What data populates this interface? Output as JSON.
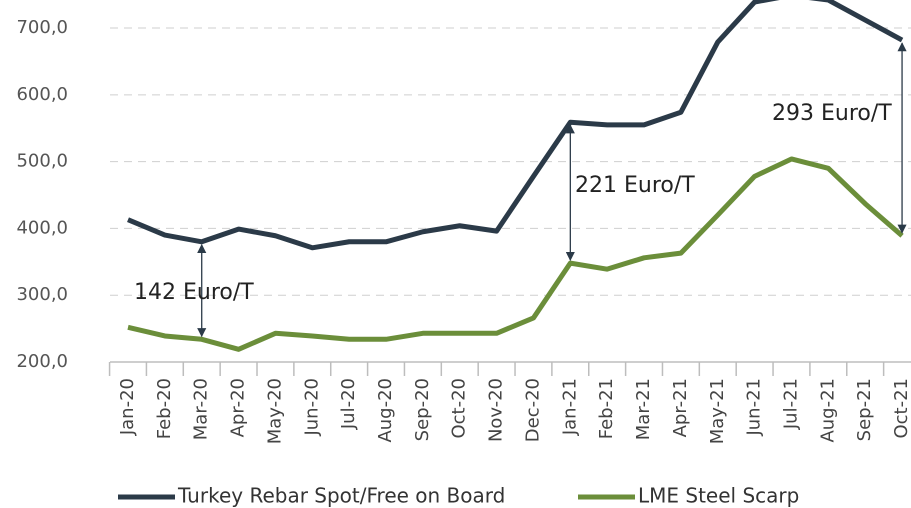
{
  "chart_data": {
    "type": "line",
    "categories": [
      "Jan-20",
      "Feb-20",
      "Mar-20",
      "Apr-20",
      "May-20",
      "Jun-20",
      "Jul-20",
      "Aug-20",
      "Sep-20",
      "Oct-20",
      "Nov-20",
      "Dec-20",
      "Jan-21",
      "Feb-21",
      "Mar-21",
      "Apr-21",
      "May-21",
      "Jun-21",
      "Jul-21",
      "Aug-21",
      "Sep-21",
      "Oct-21"
    ],
    "series": [
      {
        "name": "Turkey Rebar Spot/Free on Board",
        "color": "#2b3a48",
        "values": [
          413,
          390,
          380,
          399,
          389,
          371,
          380,
          380,
          395,
          404,
          396,
          478,
          559,
          555,
          555,
          574,
          679,
          739,
          749,
          742,
          712,
          682
        ]
      },
      {
        "name": "LME Steel Scarp",
        "color": "#6b8e3a",
        "values": [
          252,
          239,
          234,
          219,
          243,
          239,
          234,
          234,
          243,
          243,
          243,
          266,
          348,
          339,
          356,
          363,
          420,
          478,
          504,
          490,
          437,
          389
        ]
      }
    ],
    "annotations": [
      "142 Euro/T",
      "221 Euro/T",
      "293 Euro/T"
    ],
    "ylim": [
      200,
      742
    ],
    "yticks": [
      {
        "value": 200,
        "label": "200,0"
      },
      {
        "value": 300,
        "label": "300,0"
      },
      {
        "value": 400,
        "label": "400,0"
      },
      {
        "value": 500,
        "label": "500,0"
      },
      {
        "value": 600,
        "label": "600,0"
      },
      {
        "value": 700,
        "label": "700,0"
      }
    ],
    "grid": true
  }
}
